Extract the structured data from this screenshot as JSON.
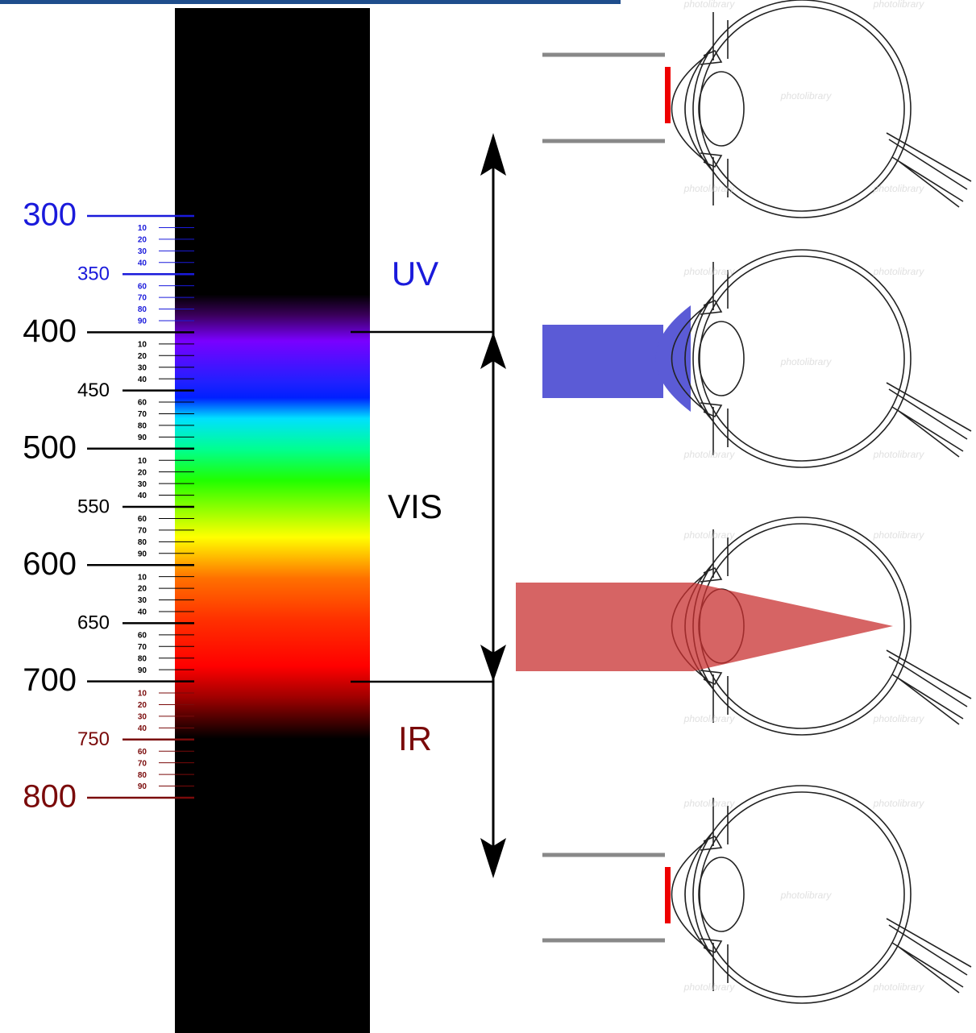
{
  "scale": {
    "ticks": [
      "300",
      "10",
      "20",
      "30",
      "40",
      "350",
      "60",
      "70",
      "80",
      "90",
      "400",
      "10",
      "20",
      "30",
      "40",
      "450",
      "60",
      "70",
      "80",
      "90",
      "500",
      "10",
      "20",
      "30",
      "40",
      "550",
      "60",
      "70",
      "80",
      "90",
      "600",
      "10",
      "20",
      "30",
      "40",
      "650",
      "60",
      "70",
      "80",
      "90",
      "700",
      "10",
      "20",
      "30",
      "40",
      "750",
      "60",
      "70",
      "80",
      "90",
      "800"
    ]
  },
  "bands": {
    "uv": "UV",
    "vis": "VIS",
    "ir": "IR"
  },
  "watermark": "photolibrary"
}
